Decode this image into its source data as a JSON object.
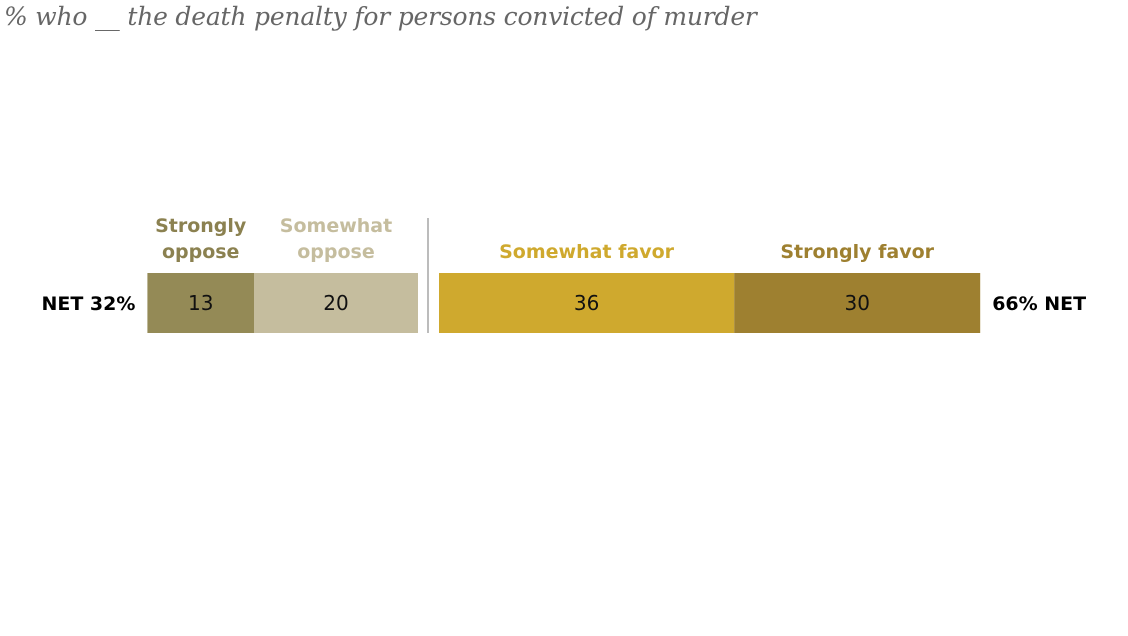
{
  "chart_data": {
    "type": "bar",
    "subtitle": "% who __ the death penalty for persons convicted of murder",
    "series": [
      {
        "name": "Strongly oppose",
        "value": 13,
        "color": "#948a56"
      },
      {
        "name": "Somewhat oppose",
        "value": 20,
        "color": "#c5bd9e"
      },
      {
        "name": "Somewhat favor",
        "value": 36,
        "color": "#cfa92e"
      },
      {
        "name": "Strongly favor",
        "value": 30,
        "color": "#9e8030"
      }
    ],
    "oppose_header_lines": [
      [
        "Strongly",
        "oppose"
      ],
      [
        "Somewhat",
        "oppose"
      ]
    ],
    "favor_header_lines": [
      [
        "Somewhat favor"
      ],
      [
        "Strongly favor"
      ]
    ],
    "header_colors": [
      "#8b8150",
      "#c5bd9e",
      "#cfa92e",
      "#9e8030"
    ],
    "net_oppose_label": "NET 32%",
    "net_favor_label": "66% NET"
  }
}
